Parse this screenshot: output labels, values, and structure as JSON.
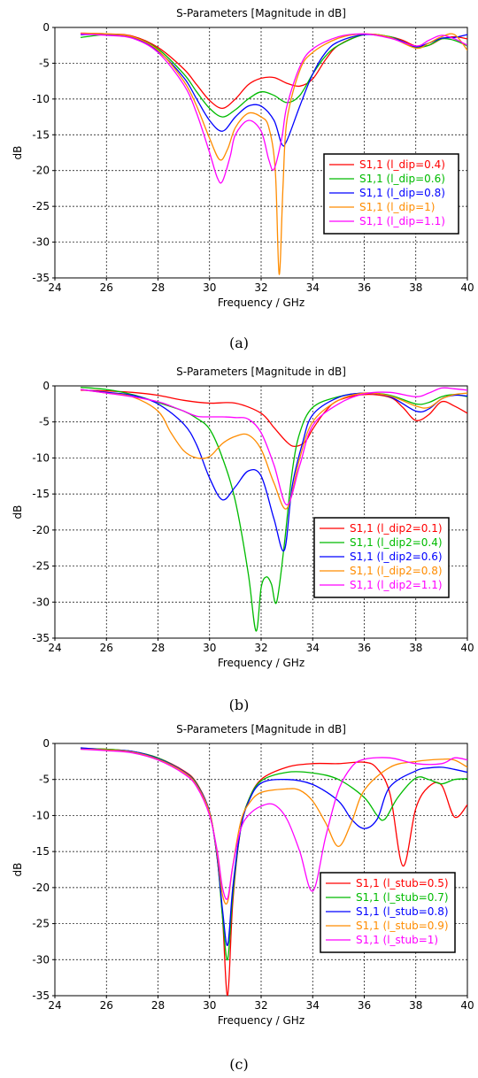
{
  "chart_data": [
    {
      "type": "line",
      "title": "S-Parameters [Magnitude in dB]",
      "xlabel": "Frequency / GHz",
      "ylabel": "dB",
      "xlim": [
        24,
        40
      ],
      "ylim": [
        -35,
        0
      ],
      "xticks": [
        "24",
        "26",
        "28",
        "30",
        "32",
        "34",
        "36",
        "38",
        "40"
      ],
      "yticks": [
        "0",
        "-5",
        "-10",
        "-15",
        "-20",
        "-25",
        "-30",
        "-35"
      ],
      "grid": true,
      "legend_position": "right",
      "caption": "(a)",
      "series": [
        {
          "name": "S1,1 (l_dip=0.4)",
          "color": "#ff0000",
          "x": [
            25,
            26,
            27,
            28,
            29,
            29.5,
            30,
            30.5,
            31,
            31.5,
            32,
            32.5,
            33,
            33.5,
            34,
            34.5,
            35,
            36,
            37,
            37.5,
            38,
            38.5,
            39,
            39.5,
            40
          ],
          "y": [
            -0.8,
            -0.9,
            -1.2,
            -2.8,
            -5.8,
            -8,
            -10.2,
            -11.3,
            -10,
            -8,
            -7.1,
            -7,
            -7.8,
            -8.2,
            -7.2,
            -4.5,
            -2.5,
            -1,
            -1.3,
            -1.8,
            -2.6,
            -2.5,
            -1.6,
            -1.3,
            -1.6
          ]
        },
        {
          "name": "S1,1 (l_dip=0.6)",
          "color": "#00bb00",
          "x": [
            25,
            26,
            27,
            28,
            29,
            29.5,
            30,
            30.5,
            31,
            31.5,
            32,
            32.5,
            33,
            33.5,
            34,
            34.5,
            35,
            36,
            37,
            37.5,
            38,
            38.5,
            39,
            39.5,
            40
          ],
          "y": [
            -1.4,
            -1.0,
            -1.3,
            -3,
            -6.5,
            -9,
            -11.3,
            -12.5,
            -11.5,
            -10,
            -9,
            -9.5,
            -10.5,
            -9.5,
            -6.5,
            -4,
            -2.5,
            -1,
            -1.3,
            -2,
            -2.8,
            -2.5,
            -1.6,
            -1.8,
            -2.6
          ]
        },
        {
          "name": "S1,1 (l_dip=0.8)",
          "color": "#0000ff",
          "x": [
            25,
            26,
            27,
            28,
            29,
            29.5,
            30,
            30.5,
            31,
            31.5,
            32,
            32.5,
            32.8,
            33,
            33.5,
            34,
            34.5,
            35,
            36,
            37,
            37.5,
            38,
            38.5,
            39,
            39.5,
            40
          ],
          "y": [
            -1,
            -1.0,
            -1.4,
            -3.3,
            -7,
            -10,
            -13,
            -14.5,
            -12.5,
            -11,
            -11,
            -13,
            -16.3,
            -15.8,
            -11,
            -6.5,
            -3.5,
            -2,
            -1,
            -1.4,
            -2,
            -2.7,
            -2.2,
            -1.5,
            -1.4,
            -1
          ]
        },
        {
          "name": "S1,1 (l_dip=1)",
          "color": "#ff8c00",
          "x": [
            25,
            26,
            27,
            28,
            29,
            29.5,
            30,
            30.4,
            30.7,
            31,
            31.5,
            32,
            32.3,
            32.55,
            32.7,
            32.85,
            33,
            33.5,
            34,
            35,
            36,
            37,
            38,
            38.5,
            39,
            39.5,
            40
          ],
          "y": [
            -0.8,
            -0.9,
            -1.3,
            -3.2,
            -7.5,
            -11,
            -15.5,
            -18.5,
            -17,
            -14,
            -12,
            -12.5,
            -14,
            -20,
            -34.5,
            -22,
            -13,
            -6,
            -3.5,
            -1.5,
            -0.9,
            -1.4,
            -2.9,
            -2.2,
            -1.3,
            -1,
            -3.2
          ]
        },
        {
          "name": "S1,1 (l_dip=1.1)",
          "color": "#ff00ff",
          "x": [
            25,
            26,
            27,
            28,
            29,
            29.5,
            30,
            30.3,
            30.5,
            30.8,
            31,
            31.5,
            32,
            32.3,
            32.5,
            32.8,
            33,
            33.5,
            34,
            35,
            36,
            37,
            38,
            38.5,
            39,
            39.5,
            40
          ],
          "y": [
            -0.9,
            -1.1,
            -1.5,
            -3.5,
            -8,
            -12,
            -17.5,
            -21,
            -21.5,
            -18,
            -15,
            -13,
            -14.5,
            -18.5,
            -19.8,
            -15.5,
            -11,
            -5.5,
            -3,
            -1.3,
            -0.9,
            -1.5,
            -2.6,
            -1.8,
            -1.1,
            -1.6,
            -2.5
          ]
        }
      ]
    },
    {
      "type": "line",
      "title": "S-Parameters [Magnitude in dB]",
      "xlabel": "Frequency / GHz",
      "ylabel": "dB",
      "xlim": [
        24,
        40
      ],
      "ylim": [
        -35,
        0
      ],
      "xticks": [
        "24",
        "26",
        "28",
        "30",
        "32",
        "34",
        "36",
        "38",
        "40"
      ],
      "yticks": [
        "0",
        "-5",
        "-10",
        "-15",
        "-20",
        "-25",
        "-30",
        "-35"
      ],
      "grid": true,
      "legend_position": "right",
      "caption": "(b)",
      "series": [
        {
          "name": "S1,1 (l_dip2=0.1)",
          "color": "#ff0000",
          "x": [
            25,
            26,
            27,
            28,
            29,
            30,
            31,
            32,
            32.5,
            33,
            33.3,
            33.7,
            34,
            34.5,
            35,
            36,
            37,
            37.5,
            38,
            38.5,
            39,
            39.5,
            40
          ],
          "y": [
            -0.6,
            -0.7,
            -0.9,
            -1.3,
            -2.0,
            -2.4,
            -2.4,
            -3.8,
            -5.8,
            -7.8,
            -8.4,
            -7.8,
            -6,
            -3.5,
            -2,
            -1.2,
            -1.6,
            -3,
            -4.8,
            -4,
            -2.2,
            -2.8,
            -3.8
          ]
        },
        {
          "name": "S1,1 (l_dip2=0.4)",
          "color": "#00bb00",
          "x": [
            25,
            26,
            27,
            28,
            29,
            29.5,
            30,
            30.5,
            31,
            31.5,
            31.8,
            32,
            32.2,
            32.4,
            32.6,
            32.9,
            33.2,
            33.5,
            34,
            35,
            36,
            37,
            38,
            38.5,
            39,
            39.5,
            40
          ],
          "y": [
            -0.2,
            -0.5,
            -1.2,
            -2.3,
            -3.5,
            -4.5,
            -6,
            -10,
            -16,
            -26,
            -34,
            -28,
            -26.5,
            -27.5,
            -30,
            -22,
            -12,
            -6.5,
            -3,
            -1.5,
            -1,
            -1.3,
            -2.5,
            -2.3,
            -1.5,
            -1.2,
            -1.5
          ]
        },
        {
          "name": "S1,1 (l_dip2=0.6)",
          "color": "#0000ff",
          "x": [
            25,
            26,
            27,
            28,
            29,
            29.5,
            30,
            30.5,
            31,
            31.5,
            32,
            32.5,
            32.9,
            33.2,
            33.6,
            34,
            35,
            36,
            37,
            38,
            38.5,
            39,
            39.5,
            40
          ],
          "y": [
            -0.5,
            -0.9,
            -1.3,
            -2.5,
            -5.3,
            -8.2,
            -12.8,
            -15.8,
            -14,
            -11.8,
            -12.5,
            -18.5,
            -22.8,
            -14,
            -8,
            -4,
            -1.6,
            -1.0,
            -1.5,
            -3.5,
            -3.2,
            -1.8,
            -1.3,
            -1.4
          ]
        },
        {
          "name": "S1,1 (l_dip2=0.8)",
          "color": "#ff8c00",
          "x": [
            25,
            26,
            27,
            28,
            28.5,
            29,
            29.5,
            30,
            30.5,
            31,
            31.5,
            32,
            32.5,
            33,
            33.5,
            34,
            35,
            36,
            37,
            38,
            38.5,
            39,
            39.5,
            40
          ],
          "y": [
            -0.5,
            -1,
            -1.5,
            -3.5,
            -6.5,
            -9,
            -10,
            -9.8,
            -8,
            -7,
            -6.8,
            -8.8,
            -13.5,
            -17,
            -10,
            -5,
            -2,
            -1,
            -1.4,
            -2.8,
            -3,
            -1.8,
            -1.2,
            -1
          ]
        },
        {
          "name": "S1,1 (l_dip2=1.1)",
          "color": "#ff00ff",
          "x": [
            25,
            26,
            27,
            28,
            28.5,
            29,
            29.5,
            30,
            30.5,
            31,
            31.5,
            32,
            32.5,
            33,
            33.5,
            34,
            35,
            36,
            37,
            38,
            38.5,
            39,
            39.5,
            40
          ],
          "y": [
            -0.5,
            -1,
            -1.5,
            -2.2,
            -2.8,
            -3.5,
            -4.2,
            -4.3,
            -4.3,
            -4.4,
            -4.6,
            -6.5,
            -11,
            -16.5,
            -11,
            -5.5,
            -2.5,
            -1.1,
            -0.9,
            -1.5,
            -1,
            -0.3,
            -0.4,
            -0.6
          ]
        }
      ]
    },
    {
      "type": "line",
      "title": "S-Parameters [Magnitude in dB]",
      "xlabel": "Frequency / GHz",
      "ylabel": "dB",
      "xlim": [
        24,
        40
      ],
      "ylim": [
        -35,
        0
      ],
      "xticks": [
        "24",
        "26",
        "28",
        "30",
        "32",
        "34",
        "36",
        "38",
        "40"
      ],
      "yticks": [
        "0",
        "-5",
        "-10",
        "-15",
        "-20",
        "-25",
        "-30",
        "-35"
      ],
      "grid": true,
      "legend_position": "bottom-right",
      "caption": "(c)",
      "series": [
        {
          "name": "S1,1 (l_stub=0.5)",
          "color": "#ff0000",
          "x": [
            25,
            26,
            27,
            28,
            29,
            29.5,
            30,
            30.3,
            30.5,
            30.7,
            30.9,
            31.2,
            31.5,
            32,
            33,
            34,
            35,
            36,
            36.5,
            37,
            37.5,
            38,
            38.5,
            39,
            39.5,
            40
          ],
          "y": [
            -0.7,
            -0.8,
            -1.1,
            -2,
            -3.8,
            -5.5,
            -9.5,
            -16,
            -24,
            -35,
            -22,
            -12,
            -8,
            -5,
            -3.3,
            -2.8,
            -2.8,
            -2.6,
            -3.5,
            -7,
            -17,
            -9,
            -6,
            -5.8,
            -10.2,
            -8.5
          ]
        },
        {
          "name": "S1,1 (l_stub=0.7)",
          "color": "#00bb00",
          "x": [
            25,
            26,
            27,
            28,
            29,
            29.5,
            30,
            30.3,
            30.5,
            30.7,
            30.9,
            31.2,
            31.5,
            32,
            33,
            34,
            35,
            36,
            36.5,
            36.8,
            37.3,
            38,
            38.5,
            39,
            39.5,
            40
          ],
          "y": [
            -0.7,
            -0.8,
            -1.1,
            -2,
            -3.9,
            -5.6,
            -9.5,
            -16,
            -24,
            -30,
            -21,
            -12,
            -8,
            -5.2,
            -4,
            -4.1,
            -5,
            -7.5,
            -10,
            -10.5,
            -7.5,
            -4.8,
            -5,
            -5.6,
            -5,
            -4.9
          ]
        },
        {
          "name": "S1,1 (l_stub=0.8)",
          "color": "#0000ff",
          "x": [
            25,
            26,
            27,
            28,
            29,
            29.5,
            30,
            30.3,
            30.5,
            30.7,
            30.9,
            31.2,
            31.5,
            32,
            33,
            34,
            35,
            35.5,
            36,
            36.5,
            37,
            38,
            38.5,
            39,
            39.5,
            40
          ],
          "y": [
            -0.6,
            -0.9,
            -1.1,
            -2.1,
            -3.9,
            -5.7,
            -9.5,
            -16,
            -23,
            -28,
            -20,
            -12,
            -8.2,
            -5.5,
            -5,
            -5.7,
            -8,
            -10.5,
            -11.8,
            -10.5,
            -6,
            -3.8,
            -3.4,
            -3.3,
            -3.6,
            -4
          ]
        },
        {
          "name": "S1,1 (l_stub=0.9)",
          "color": "#ff8c00",
          "x": [
            25,
            26,
            27,
            28,
            29,
            29.5,
            30,
            30.3,
            30.5,
            30.7,
            30.9,
            31.2,
            31.5,
            32,
            33,
            33.5,
            34,
            34.5,
            35,
            35.5,
            36,
            37,
            38,
            39,
            39.5,
            40
          ],
          "y": [
            -0.8,
            -0.9,
            -1.2,
            -2.2,
            -4,
            -5.8,
            -9.6,
            -15.5,
            -21,
            -22,
            -17,
            -11,
            -8.5,
            -6.8,
            -6.3,
            -6.5,
            -8,
            -11,
            -14.3,
            -11,
            -6.5,
            -3.3,
            -2.5,
            -2.2,
            -2.3,
            -3.3
          ]
        },
        {
          "name": "S1,1 (l_stub=1)",
          "color": "#ff00ff",
          "x": [
            25,
            26,
            27,
            28,
            29,
            29.5,
            30,
            30.3,
            30.5,
            30.7,
            30.9,
            31.2,
            31.5,
            32,
            32.5,
            33,
            33.5,
            34,
            34.5,
            35,
            35.5,
            36,
            37,
            38,
            39,
            39.5,
            40
          ],
          "y": [
            -0.8,
            -1,
            -1.3,
            -2.3,
            -4.2,
            -6,
            -10,
            -15,
            -20,
            -21.5,
            -17,
            -12,
            -10,
            -8.7,
            -8.5,
            -10.5,
            -15,
            -20.5,
            -13,
            -6.5,
            -3.3,
            -2.2,
            -2,
            -2.8,
            -2.8,
            -2,
            -2.3
          ]
        }
      ]
    }
  ]
}
